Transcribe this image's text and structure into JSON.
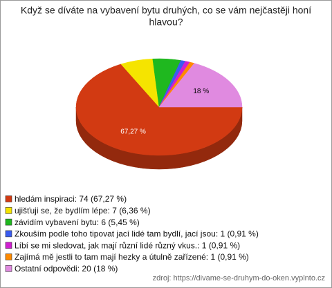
{
  "chart_data": {
    "type": "pie3d",
    "title": [
      "Když se díváte na vybavení bytu druhých, co se vám nejčastěji honí",
      "hlavou?"
    ],
    "categories": [
      "hledám inspiraci: 74 (67,27 %)",
      "ujišťuji se, že bydlím lépe: 7 (6,36 %)",
      "závidím vybavení bytu: 6 (5,45 %)",
      "Zkouším podle toho tipovat jací lidé tam bydlí, jací jsou: 1 (0,91 %)",
      "Líbí se mi sledovat, jak mají různí lidé různý vkus.: 1 (0,91 %)",
      "Zajímá mě jestli to tam mají hezky a útulně zařízené: 1 (0,91 %)",
      "Ostatní odpovědi: 20 (18 %)"
    ],
    "values": [
      67.27,
      6.36,
      5.45,
      0.91,
      0.91,
      0.91,
      18
    ],
    "value_labels": [
      "67,27 %",
      null,
      null,
      null,
      null,
      null,
      "18 %"
    ],
    "colors": [
      "#d23a12",
      "#f5e400",
      "#1fb81f",
      "#3a5cf0",
      "#d020d0",
      "#ff8a00",
      "#e08ae0"
    ],
    "source": "zdroj: https://divame-se-druhym-do-oken.vyplnto.cz"
  }
}
